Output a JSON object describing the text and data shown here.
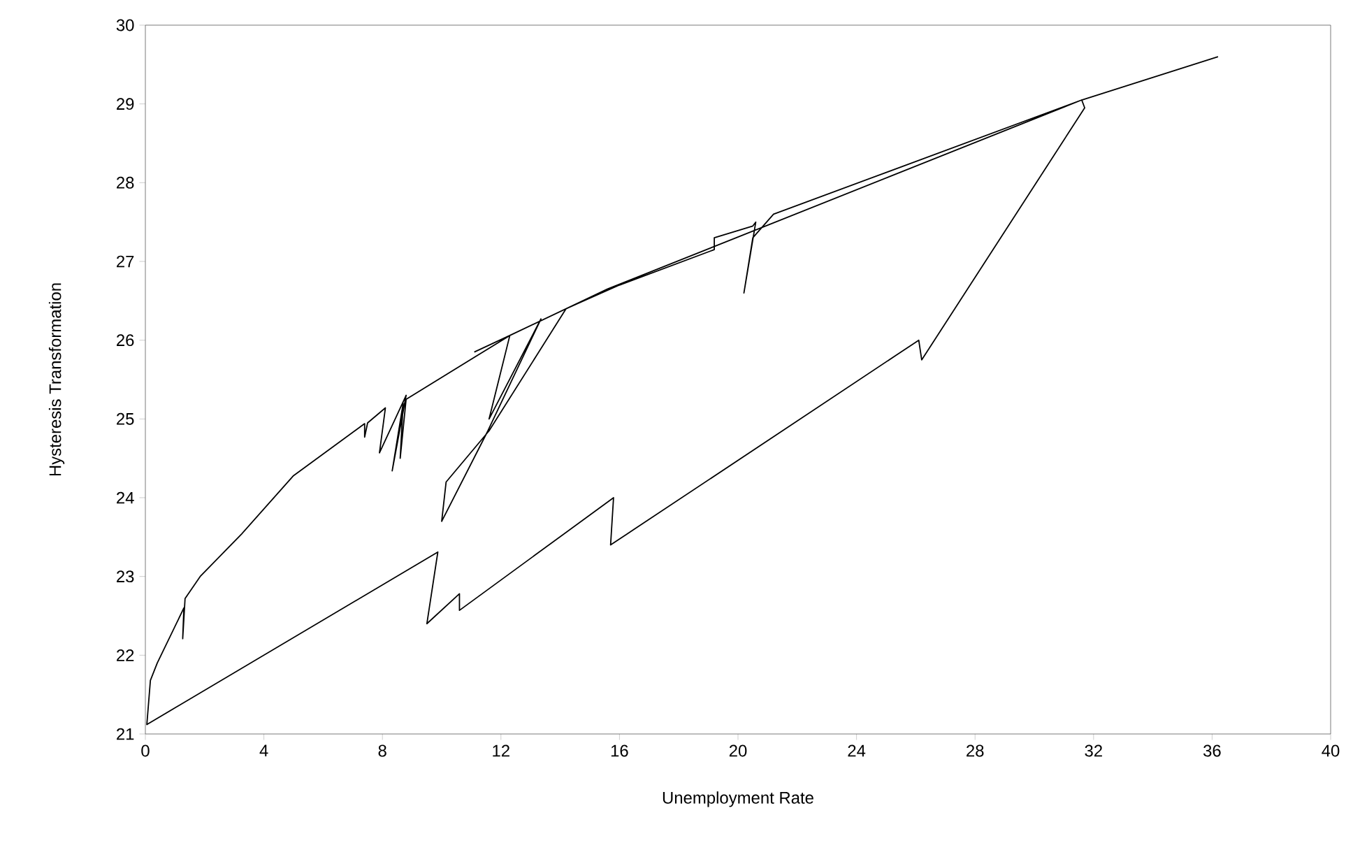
{
  "chart_data": {
    "type": "line",
    "xlabel": "Unemployment Rate",
    "ylabel": "Hysteresis Transformation",
    "xlim": [
      0,
      40
    ],
    "ylim": [
      21,
      30
    ],
    "xticks": [
      0,
      4,
      8,
      12,
      16,
      20,
      24,
      28,
      32,
      36,
      40
    ],
    "yticks": [
      21,
      22,
      23,
      24,
      25,
      26,
      27,
      28,
      29,
      30
    ],
    "marker": "none",
    "line_style": "solid",
    "series": [
      {
        "color": "#000000",
        "x": [
          11.1,
          12.3,
          11.6,
          13.35,
          11.56,
          10.0,
          10.15,
          11.6,
          14.2,
          14.5,
          16.0,
          19.2,
          19.2,
          20.5,
          20.6,
          20.2,
          20.5,
          21.2,
          31.6,
          31.7,
          26.2,
          26.1,
          16.5,
          15.7,
          15.8,
          10.6,
          10.6,
          9.5,
          9.87,
          0.05,
          0.17,
          0.4,
          1.3,
          1.26,
          1.34,
          1.85,
          3.25,
          5.0,
          7.4,
          7.4,
          7.5,
          8.1,
          7.9,
          8.8,
          8.33,
          8.7,
          8.6,
          8.8,
          12.3,
          15.6,
          31.6,
          36.2
        ],
        "values": [
          25.85,
          26.06,
          25.0,
          26.27,
          24.85,
          23.7,
          24.2,
          24.85,
          26.4,
          26.45,
          26.7,
          27.15,
          27.3,
          27.45,
          27.5,
          26.6,
          27.3,
          27.6,
          29.05,
          28.95,
          25.75,
          26.0,
          23.6,
          23.4,
          24.0,
          22.57,
          22.78,
          22.4,
          23.31,
          21.12,
          21.68,
          21.9,
          22.6,
          22.21,
          22.72,
          23.0,
          23.54,
          24.28,
          24.94,
          24.77,
          24.95,
          25.14,
          24.57,
          25.3,
          24.34,
          25.2,
          24.5,
          25.25,
          26.06,
          26.65,
          29.05,
          29.6
        ]
      }
    ]
  }
}
